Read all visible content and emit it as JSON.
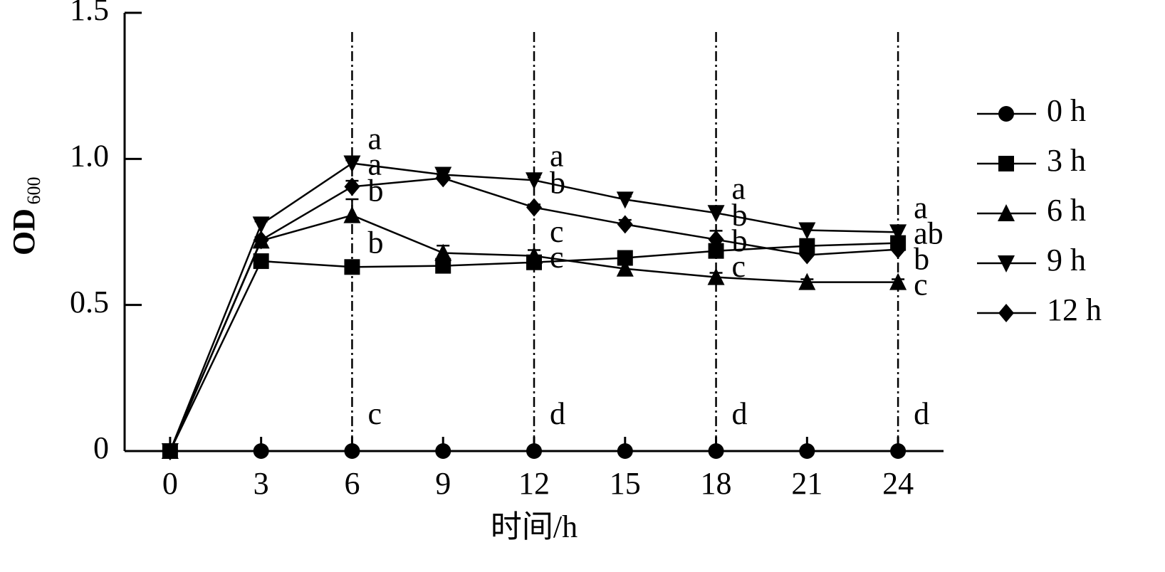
{
  "chart_data": {
    "type": "line",
    "x_label": "时间/h",
    "y_label": "OD",
    "y_label_sub": "600",
    "x": [
      0,
      3,
      6,
      9,
      12,
      15,
      18,
      21,
      24
    ],
    "xlim": [
      -1.5,
      25.5
    ],
    "xticks": [
      0,
      3,
      6,
      9,
      12,
      15,
      18,
      21,
      24
    ],
    "ylim": [
      0,
      1.5
    ],
    "yticks": [
      0,
      0.5,
      {
        "value": 1,
        "label": "1.0"
      },
      1.5
    ],
    "series": [
      {
        "name": "0 h",
        "color": "#000000",
        "marker": "circle",
        "values": [
          0,
          0,
          0,
          0,
          0,
          0,
          0,
          0,
          0
        ],
        "errors": [
          0,
          0,
          0,
          0,
          0,
          0,
          0,
          0,
          0
        ]
      },
      {
        "name": "3 h",
        "color": "#000000",
        "marker": "square",
        "values": [
          0,
          0.65,
          0.63,
          0.634,
          0.646,
          0.661,
          0.685,
          0.702,
          0.712
        ],
        "errors": [
          0,
          0.02,
          0.01,
          0.01,
          0.015,
          0.01,
          0.015,
          0.01,
          0.01
        ]
      },
      {
        "name": "6 h",
        "color": "#000000",
        "marker": "triangle-up",
        "values": [
          0,
          0.72,
          0.807,
          0.678,
          0.668,
          0.624,
          0.595,
          0.578,
          0.578
        ],
        "errors": [
          0,
          0.01,
          0.055,
          0.025,
          0.02,
          0.015,
          0.015,
          0.01,
          0.01
        ]
      },
      {
        "name": "9 h",
        "color": "#000000",
        "marker": "triangle-down",
        "values": [
          0,
          0.776,
          0.985,
          0.946,
          0.927,
          0.861,
          0.815,
          0.756,
          0.749
        ],
        "errors": [
          0,
          0.01,
          0.01,
          0.01,
          0.01,
          0.01,
          0.02,
          0.015,
          0.015
        ]
      },
      {
        "name": "12 h",
        "color": "#000000",
        "marker": "diamond",
        "values": [
          0,
          0.722,
          0.905,
          0.934,
          0.834,
          0.776,
          0.724,
          0.671,
          0.69
        ],
        "errors": [
          0,
          0.01,
          0.02,
          0.01,
          0.01,
          0.015,
          0.03,
          0.01,
          0.01
        ]
      }
    ],
    "significance": [
      {
        "x": 6,
        "letters": [
          "c",
          "b",
          "b",
          "a",
          "a"
        ]
      },
      {
        "x": 12,
        "letters": [
          "d",
          "c",
          "c",
          "a",
          "b"
        ]
      },
      {
        "x": 18,
        "letters": [
          "d",
          "b",
          "c",
          "a",
          "b"
        ]
      },
      {
        "x": 24,
        "letters": [
          "d",
          "ab",
          "c",
          "a",
          "b"
        ]
      }
    ]
  }
}
